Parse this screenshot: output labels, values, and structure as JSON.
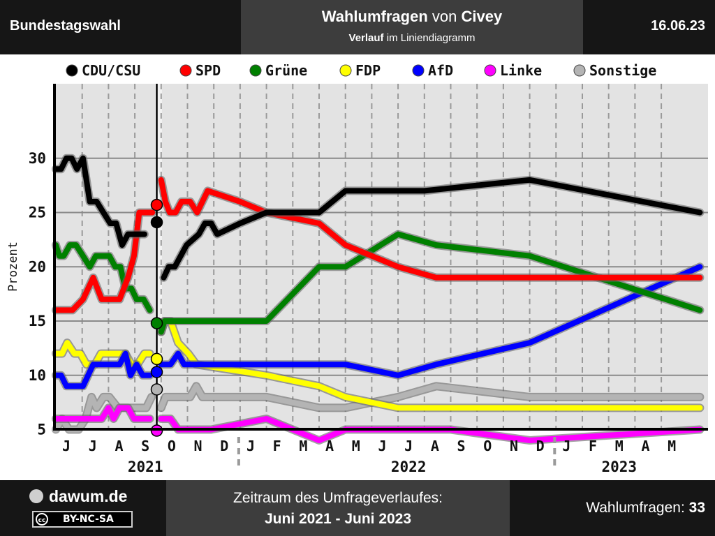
{
  "header": {
    "left": "Bundestagswahl",
    "title_bold1": "Wahlumfragen",
    "title_mid": " von ",
    "title_bold2": "Civey",
    "sub_bold": "Verlauf",
    "sub_rest": " im Liniendiagramm",
    "date": "16.06.23"
  },
  "footer": {
    "brand": "dawum.de",
    "license": "BY-NC-SA",
    "license_icon": "cc-icon",
    "period_label": "Zeitraum des Umfrageverlaufes:",
    "period_value": "Juni 2021 - Juni 2023",
    "polls_label": "Wahlumfragen: ",
    "polls_count": "33"
  },
  "chart_data": {
    "type": "line",
    "title": "",
    "xlabel": "",
    "ylabel": "Prozent",
    "ylim": [
      0,
      31
    ],
    "y_ticks": [
      5,
      10,
      15,
      20,
      25,
      30
    ],
    "threshold_line": {
      "value": 5,
      "color": "#e00000"
    },
    "grid": true,
    "legend_position": "top",
    "month_ticks": [
      "J",
      "J",
      "A",
      "S",
      "O",
      "N",
      "D",
      "J",
      "F",
      "M",
      "A",
      "M",
      "J",
      "J",
      "A",
      "S",
      "O",
      "N",
      "D",
      "J",
      "F",
      "M",
      "A",
      "M"
    ],
    "year_labels": [
      {
        "label": "2021",
        "month_index": 3
      },
      {
        "label": "2022",
        "month_index": 13
      },
      {
        "label": "2023",
        "month_index": 21
      }
    ],
    "election_marker": {
      "date": "2021-09-26",
      "results": [
        {
          "party": "CDU/CSU",
          "value": 24.1
        },
        {
          "party": "SPD",
          "value": 25.7
        },
        {
          "party": "Grüne",
          "value": 14.8
        },
        {
          "party": "FDP",
          "value": 11.5
        },
        {
          "party": "AfD",
          "value": 10.3
        },
        {
          "party": "Linke",
          "value": 4.9
        },
        {
          "party": "Sonstige",
          "value": 8.7
        }
      ]
    },
    "series": [
      {
        "name": "CDU/CSU",
        "color": "#000000",
        "points": [
          [
            "2021-06-01",
            29
          ],
          [
            "2021-06-07",
            29
          ],
          [
            "2021-06-13",
            30
          ],
          [
            "2021-06-19",
            30
          ],
          [
            "2021-06-25",
            29
          ],
          [
            "2021-07-02",
            30
          ],
          [
            "2021-07-10",
            26
          ],
          [
            "2021-07-18",
            26
          ],
          [
            "2021-07-26",
            25
          ],
          [
            "2021-08-03",
            24
          ],
          [
            "2021-08-10",
            24
          ],
          [
            "2021-08-17",
            22
          ],
          [
            "2021-08-24",
            23
          ],
          [
            "2021-08-31",
            23
          ],
          [
            "2021-09-06",
            23
          ],
          [
            "2021-09-12",
            23
          ],
          null,
          [
            "2021-10-04",
            19
          ],
          [
            "2021-10-10",
            20
          ],
          [
            "2021-10-17",
            20
          ],
          [
            "2021-10-31",
            22
          ],
          [
            "2021-11-14",
            23
          ],
          [
            "2021-11-21",
            24
          ],
          [
            "2021-11-28",
            24
          ],
          [
            "2021-12-05",
            23
          ],
          [
            "2022-01-01",
            24
          ],
          [
            "2022-02-01",
            25
          ],
          [
            "2022-03-01",
            25
          ],
          [
            "2022-04-01",
            25
          ],
          [
            "2022-05-01",
            27
          ],
          [
            "2022-06-01",
            27
          ],
          [
            "2022-08-01",
            27
          ],
          [
            "2022-12-01",
            28
          ],
          [
            "2023-06-15",
            25
          ]
        ]
      },
      {
        "name": "SPD",
        "color": "#ff0000",
        "points": [
          [
            "2021-06-01",
            16
          ],
          [
            "2021-06-10",
            16
          ],
          [
            "2021-06-20",
            16
          ],
          [
            "2021-07-02",
            17
          ],
          [
            "2021-07-14",
            19
          ],
          [
            "2021-07-24",
            17
          ],
          [
            "2021-08-03",
            17
          ],
          [
            "2021-08-14",
            17
          ],
          [
            "2021-08-24",
            19
          ],
          [
            "2021-08-31",
            21
          ],
          [
            "2021-09-06",
            25
          ],
          [
            "2021-09-14",
            25
          ],
          [
            "2021-09-21",
            25
          ],
          null,
          [
            "2021-10-01",
            28
          ],
          [
            "2021-10-06",
            26
          ],
          [
            "2021-10-11",
            25
          ],
          [
            "2021-10-18",
            25
          ],
          [
            "2021-10-25",
            26
          ],
          [
            "2021-11-04",
            26
          ],
          [
            "2021-11-12",
            25
          ],
          [
            "2021-11-24",
            27
          ],
          [
            "2022-01-01",
            26
          ],
          [
            "2022-02-01",
            25
          ],
          [
            "2022-04-01",
            24
          ],
          [
            "2022-05-01",
            22
          ],
          [
            "2022-07-01",
            20
          ],
          [
            "2022-08-15",
            19
          ],
          [
            "2022-10-01",
            19
          ],
          [
            "2023-06-15",
            19
          ]
        ]
      },
      {
        "name": "Grüne",
        "color": "#008000",
        "points": [
          [
            "2021-06-01",
            22
          ],
          [
            "2021-06-05",
            21
          ],
          [
            "2021-06-10",
            21
          ],
          [
            "2021-06-17",
            22
          ],
          [
            "2021-06-24",
            22
          ],
          [
            "2021-07-02",
            21
          ],
          [
            "2021-07-10",
            20
          ],
          [
            "2021-07-17",
            21
          ],
          [
            "2021-07-26",
            21
          ],
          [
            "2021-08-02",
            21
          ],
          [
            "2021-08-09",
            20
          ],
          [
            "2021-08-15",
            20
          ],
          [
            "2021-08-21",
            18
          ],
          [
            "2021-08-28",
            18
          ],
          [
            "2021-09-03",
            17
          ],
          [
            "2021-09-11",
            17
          ],
          [
            "2021-09-18",
            16
          ],
          null,
          [
            "2021-10-01",
            14
          ],
          [
            "2021-10-05",
            15
          ],
          [
            "2021-10-12",
            15
          ],
          [
            "2022-02-01",
            15
          ],
          [
            "2022-04-01",
            20
          ],
          [
            "2022-05-01",
            20
          ],
          [
            "2022-07-01",
            23
          ],
          [
            "2022-08-15",
            22
          ],
          [
            "2022-12-01",
            21
          ],
          [
            "2023-06-15",
            16
          ]
        ]
      },
      {
        "name": "FDP",
        "color": "#ffff00",
        "points": [
          [
            "2021-06-01",
            12
          ],
          [
            "2021-06-08",
            12
          ],
          [
            "2021-06-14",
            13
          ],
          [
            "2021-06-22",
            12
          ],
          [
            "2021-06-29",
            12
          ],
          [
            "2021-07-06",
            11
          ],
          [
            "2021-07-16",
            11
          ],
          [
            "2021-07-23",
            12
          ],
          [
            "2021-08-03",
            12
          ],
          [
            "2021-08-14",
            12
          ],
          [
            "2021-08-21",
            12
          ],
          [
            "2021-08-28",
            11
          ],
          [
            "2021-09-04",
            11
          ],
          [
            "2021-09-12",
            12
          ],
          [
            "2021-09-18",
            12
          ],
          null,
          [
            "2021-10-01",
            14
          ],
          [
            "2021-10-05",
            15
          ],
          [
            "2021-10-12",
            15
          ],
          [
            "2021-10-21",
            13
          ],
          [
            "2021-11-02",
            12
          ],
          [
            "2021-11-11",
            11
          ],
          [
            "2022-02-01",
            10
          ],
          [
            "2022-04-01",
            9
          ],
          [
            "2022-05-01",
            8
          ],
          [
            "2022-07-01",
            7
          ],
          [
            "2022-09-01",
            7
          ],
          [
            "2023-06-15",
            7
          ]
        ]
      },
      {
        "name": "AfD",
        "color": "#0000ff",
        "points": [
          [
            "2021-06-01",
            10
          ],
          [
            "2021-06-07",
            10
          ],
          [
            "2021-06-13",
            9
          ],
          [
            "2021-06-20",
            9
          ],
          [
            "2021-07-02",
            9
          ],
          [
            "2021-07-14",
            11
          ],
          [
            "2021-07-24",
            11
          ],
          [
            "2021-08-03",
            11
          ],
          [
            "2021-08-14",
            11
          ],
          [
            "2021-08-21",
            12
          ],
          [
            "2021-08-27",
            10
          ],
          [
            "2021-09-03",
            11
          ],
          [
            "2021-09-10",
            10
          ],
          [
            "2021-09-18",
            10
          ],
          null,
          [
            "2021-10-01",
            11
          ],
          [
            "2021-10-12",
            11
          ],
          [
            "2021-10-21",
            12
          ],
          [
            "2021-10-28",
            11
          ],
          [
            "2021-11-11",
            11
          ],
          [
            "2022-05-01",
            11
          ],
          [
            "2022-07-01",
            10
          ],
          [
            "2022-08-15",
            11
          ],
          [
            "2022-12-01",
            13
          ],
          [
            "2023-06-15",
            20
          ]
        ]
      },
      {
        "name": "Linke",
        "color": "#ff00ff",
        "points": [
          [
            "2021-06-01",
            6
          ],
          [
            "2021-06-10",
            6
          ],
          [
            "2021-06-22",
            6
          ],
          [
            "2021-07-02",
            6
          ],
          [
            "2021-07-14",
            6
          ],
          [
            "2021-07-24",
            6
          ],
          [
            "2021-08-01",
            7
          ],
          [
            "2021-08-07",
            6
          ],
          [
            "2021-08-14",
            7
          ],
          [
            "2021-08-24",
            7
          ],
          [
            "2021-08-31",
            6
          ],
          [
            "2021-09-07",
            6
          ],
          [
            "2021-09-18",
            6
          ],
          null,
          [
            "2021-10-01",
            6
          ],
          [
            "2021-10-12",
            6
          ],
          [
            "2021-10-21",
            5
          ],
          [
            "2021-11-28",
            5
          ],
          [
            "2022-02-01",
            6
          ],
          [
            "2022-04-01",
            4
          ],
          [
            "2022-05-01",
            5
          ],
          [
            "2022-09-01",
            5
          ],
          [
            "2022-12-01",
            4
          ],
          [
            "2023-06-15",
            5
          ]
        ]
      },
      {
        "name": "Sonstige",
        "color": "#b4b4b4",
        "points": [
          [
            "2021-06-01",
            5
          ],
          [
            "2021-06-08",
            6
          ],
          [
            "2021-06-16",
            5
          ],
          [
            "2021-06-27",
            5
          ],
          [
            "2021-07-05",
            6
          ],
          [
            "2021-07-12",
            8
          ],
          [
            "2021-07-18",
            7
          ],
          [
            "2021-07-26",
            8
          ],
          [
            "2021-08-02",
            8
          ],
          [
            "2021-08-12",
            7
          ],
          [
            "2021-08-24",
            7
          ],
          [
            "2021-09-03",
            7
          ],
          [
            "2021-09-14",
            7
          ],
          [
            "2021-09-20",
            8
          ],
          null,
          [
            "2021-10-01",
            7
          ],
          [
            "2021-10-06",
            8
          ],
          [
            "2021-10-21",
            8
          ],
          [
            "2021-11-04",
            8
          ],
          [
            "2021-11-11",
            9
          ],
          [
            "2021-11-18",
            8
          ],
          [
            "2022-02-01",
            8
          ],
          [
            "2022-04-01",
            7
          ],
          [
            "2022-05-01",
            7
          ],
          [
            "2022-07-01",
            8
          ],
          [
            "2022-08-15",
            9
          ],
          [
            "2022-12-01",
            8
          ],
          [
            "2023-06-15",
            8
          ]
        ]
      }
    ]
  }
}
